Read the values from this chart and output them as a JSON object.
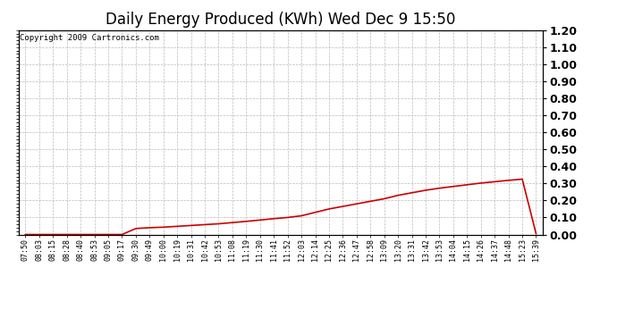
{
  "title": "Daily Energy Produced (KWh) Wed Dec 9 15:50",
  "copyright_text": "Copyright 2009 Cartronics.com",
  "line_color": "#cc0000",
  "background_color": "#ffffff",
  "grid_color": "#bbbbbb",
  "ylim": [
    0.0,
    1.2
  ],
  "yticks": [
    0.0,
    0.1,
    0.2,
    0.3,
    0.4,
    0.5,
    0.6,
    0.7,
    0.8,
    0.9,
    1.0,
    1.1,
    1.2
  ],
  "x_labels": [
    "07:50",
    "08:03",
    "08:15",
    "08:28",
    "08:40",
    "08:53",
    "09:05",
    "09:17",
    "09:30",
    "09:49",
    "10:00",
    "10:19",
    "10:31",
    "10:42",
    "10:53",
    "11:08",
    "11:19",
    "11:30",
    "11:41",
    "11:52",
    "12:03",
    "12:14",
    "12:25",
    "12:36",
    "12:47",
    "12:58",
    "13:09",
    "13:20",
    "13:31",
    "13:42",
    "13:53",
    "14:04",
    "14:15",
    "14:26",
    "14:37",
    "14:48",
    "15:23",
    "15:39"
  ],
  "y_values": [
    0.0,
    0.0,
    0.0,
    0.0,
    0.0,
    0.0,
    0.0,
    0.0,
    0.035,
    0.04,
    0.043,
    0.048,
    0.053,
    0.058,
    0.063,
    0.07,
    0.077,
    0.085,
    0.093,
    0.1,
    0.11,
    0.13,
    0.15,
    0.165,
    0.18,
    0.195,
    0.21,
    0.23,
    0.245,
    0.26,
    0.272,
    0.282,
    0.292,
    0.302,
    0.31,
    0.318,
    0.325,
    0.005
  ],
  "title_fontsize": 12,
  "ytick_fontsize": 9,
  "xtick_fontsize": 6,
  "copyright_fontsize": 6.5,
  "linewidth": 1.2
}
